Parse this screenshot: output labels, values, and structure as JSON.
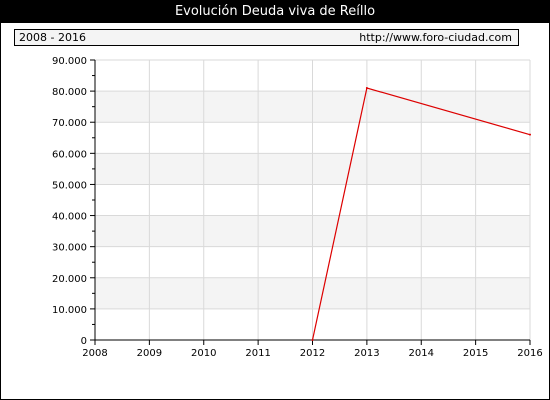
{
  "header": {
    "title": "Evolución Deuda viva de Reíllo",
    "range": "2008 - 2016",
    "url": "http://www.foro-ciudad.com"
  },
  "colors": {
    "line": "#dd0000",
    "band": "#f4f4f4",
    "grid": "#d9d9d9"
  },
  "chart_data": {
    "type": "line",
    "title": "Evolución Deuda viva de Reíllo",
    "xlabel": "",
    "ylabel": "",
    "x": [
      2008,
      2009,
      2010,
      2011,
      2012,
      2013,
      2014,
      2015,
      2016
    ],
    "x_tick_labels": [
      "2008",
      "2009",
      "2010",
      "2011",
      "2012",
      "2013",
      "2014",
      "2015",
      "2016"
    ],
    "y_tick_labels": [
      "0",
      "10.000",
      "20.000",
      "30.000",
      "40.000",
      "50.000",
      "60.000",
      "70.000",
      "80.000",
      "90.000"
    ],
    "ylim": [
      0,
      90000
    ],
    "grid": true,
    "series": [
      {
        "x": [
          2012,
          2013,
          2016
        ],
        "values": [
          0,
          81000,
          66000
        ]
      }
    ]
  }
}
